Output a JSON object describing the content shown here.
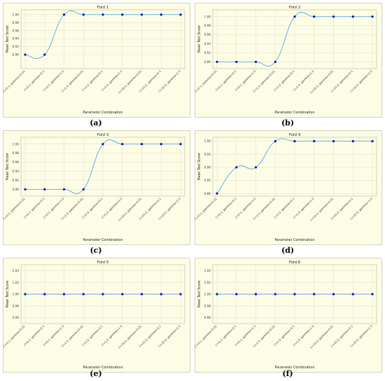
{
  "panel_labels": [
    "(a)",
    "(b)",
    "(c)",
    "(d)",
    "(e)",
    "(f)"
  ],
  "colors": {
    "background": "#fdfde6",
    "grid": "#e3e3c8",
    "line": "#5aa9e0",
    "marker": "#0a0ab4",
    "frame": "#c9c9a8"
  },
  "chart_data": [
    {
      "type": "line",
      "title": "Fold 1",
      "xlabel": "Parameter Combination",
      "ylabel": "Mean Test Score",
      "categories": [
        "C=0.1, gamma=0.01",
        "C=0.1, gamma=0.1",
        "C=0.1, gamma=1.0",
        "C=1.0, gamma=0.01",
        "C=1.0, gamma=0.1",
        "C=1.0, gamma=1.0",
        "C=10.0, gamma=0.01",
        "C=10.0, gamma=0.1",
        "C=10.0, gamma=1.0"
      ],
      "values": [
        0.9,
        0.9,
        1.0,
        1.0,
        1.0,
        1.0,
        1.0,
        1.0,
        1.0
      ],
      "ylim": [
        0.865,
        1.012
      ],
      "yticks": [
        "0.90",
        "0.92",
        "0.94",
        "0.96",
        "0.98",
        "1.00"
      ],
      "grid": true
    },
    {
      "type": "line",
      "title": "Fold 2",
      "xlabel": "Parameter Combination",
      "ylabel": "Mean Test Score",
      "categories": [
        "C=0.1, gamma=0.01",
        "C=0.1, gamma=0.1",
        "C=0.1, gamma=1.0",
        "C=1.0, gamma=0.01",
        "C=1.0, gamma=0.1",
        "C=1.0, gamma=1.0",
        "C=10.0, gamma=0.01",
        "C=10.0, gamma=0.1",
        "C=10.0, gamma=1.0"
      ],
      "values": [
        0.9,
        0.9,
        0.9,
        0.9,
        1.0,
        1.0,
        1.0,
        1.0,
        1.0
      ],
      "ylim": [
        0.885,
        1.015
      ],
      "yticks": [
        "0.90",
        "0.92",
        "0.94",
        "0.96",
        "0.98",
        "1.00"
      ],
      "grid": true
    },
    {
      "type": "line",
      "title": "Fold 3",
      "xlabel": "Parameter Combination",
      "ylabel": "Mean Test Score",
      "categories": [
        "C=0.1, gamma=0.01",
        "C=0.1, gamma=0.1",
        "C=0.1, gamma=1.0",
        "C=1.0, gamma=0.01",
        "C=1.0, gamma=0.1",
        "C=1.0, gamma=1.0",
        "C=10.0, gamma=0.01",
        "C=10.0, gamma=0.1",
        "C=10.0, gamma=1.0"
      ],
      "values": [
        0.9,
        0.9,
        0.9,
        0.9,
        1.0,
        1.0,
        1.0,
        1.0,
        1.0
      ],
      "ylim": [
        0.885,
        1.015
      ],
      "yticks": [
        "0.90",
        "0.92",
        "0.94",
        "0.96",
        "0.98",
        "1.00"
      ],
      "grid": true
    },
    {
      "type": "line",
      "title": "Fold 4",
      "xlabel": "Parameter Combination",
      "ylabel": "Mean Test Score",
      "categories": [
        "C=0.1, gamma=0.01",
        "C=0.1, gamma=0.1",
        "C=0.1, gamma=1.0",
        "C=1.0, gamma=0.01",
        "C=1.0, gamma=0.1",
        "C=1.0, gamma=1.0",
        "C=10.0, gamma=0.01",
        "C=10.0, gamma=0.1",
        "C=10.0, gamma=1.0"
      ],
      "values": [
        0.8,
        0.9,
        0.9,
        1.0,
        1.0,
        1.0,
        1.0,
        1.0,
        1.0
      ],
      "ylim": [
        0.79,
        1.015
      ],
      "yticks": [
        "0.80",
        "0.85",
        "0.90",
        "0.95",
        "1.00"
      ],
      "grid": true
    },
    {
      "type": "line",
      "title": "Fold 5",
      "xlabel": "Parameter Combination",
      "ylabel": "Mean Test Score",
      "categories": [
        "C=0.1, gamma=0.01",
        "C=0.1, gamma=0.1",
        "C=0.1, gamma=1.0",
        "C=1.0, gamma=0.01",
        "C=1.0, gamma=0.1",
        "C=1.0, gamma=1.0",
        "C=10.0, gamma=0.01",
        "C=10.0, gamma=0.1",
        "C=10.0, gamma=1.0"
      ],
      "values": [
        1.0,
        1.0,
        1.0,
        1.0,
        1.0,
        1.0,
        1.0,
        1.0,
        1.0
      ],
      "ylim": [
        0.95,
        1.05
      ],
      "yticks": [
        "0.96",
        "0.98",
        "1.00",
        "1.02",
        "1.04"
      ],
      "grid": true
    },
    {
      "type": "line",
      "title": "Fold 6",
      "xlabel": "Parameter Combination",
      "ylabel": "Mean Test Score",
      "categories": [
        "C=0.1, gamma=0.01",
        "C=0.1, gamma=0.1",
        "C=0.1, gamma=1.0",
        "C=1.0, gamma=0.01",
        "C=1.0, gamma=0.1",
        "C=1.0, gamma=1.0",
        "C=10.0, gamma=0.01",
        "C=10.0, gamma=0.1",
        "C=10.0, gamma=1.0"
      ],
      "values": [
        1.0,
        1.0,
        1.0,
        1.0,
        1.0,
        1.0,
        1.0,
        1.0,
        1.0
      ],
      "ylim": [
        0.95,
        1.05
      ],
      "yticks": [
        "0.96",
        "0.98",
        "1.00",
        "1.02",
        "1.04"
      ],
      "grid": true
    }
  ]
}
